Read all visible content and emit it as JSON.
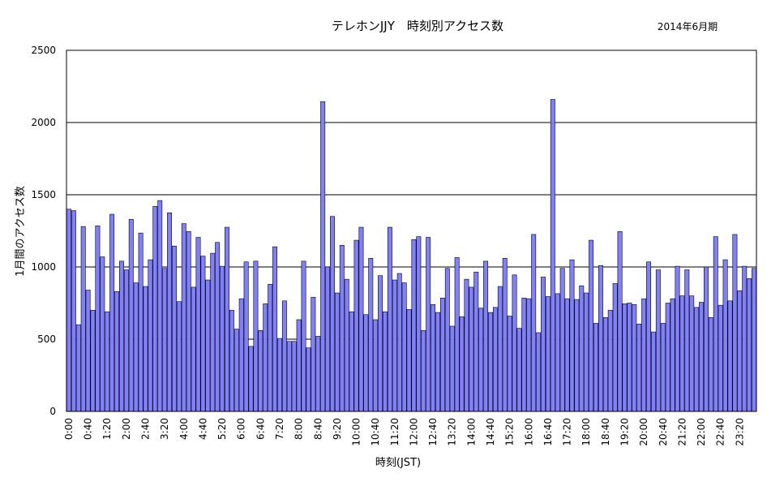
{
  "chart_data": {
    "type": "bar",
    "title": "テレホンJJY　時刻別アクセス数",
    "subtitle": "2014年6月期",
    "xlabel": "時刻(JST)",
    "ylabel": "1月間のアクセス数",
    "ylim": [
      0,
      2500
    ],
    "yticks": [
      0,
      500,
      1000,
      1500,
      2000,
      2500
    ],
    "grid": true,
    "colors": {
      "bar": "#8080ff",
      "grid": "#000000"
    },
    "x_tick_labels": [
      "0:00",
      "0:40",
      "1:20",
      "2:00",
      "2:40",
      "3:20",
      "4:00",
      "4:40",
      "5:20",
      "6:00",
      "6:40",
      "7:20",
      "8:00",
      "8:40",
      "9:20",
      "10:00",
      "10:40",
      "11:20",
      "12:00",
      "12:40",
      "13:20",
      "14:00",
      "14:40",
      "15:20",
      "16:00",
      "16:40",
      "17:20",
      "18:00",
      "18:40",
      "19:20",
      "20:00",
      "20:40",
      "21:20",
      "22:00",
      "22:40",
      "23:20"
    ],
    "interval_minutes": 10,
    "values": [
      1400,
      1390,
      600,
      1280,
      840,
      700,
      1285,
      1070,
      690,
      1365,
      830,
      1040,
      980,
      1330,
      890,
      1235,
      865,
      1050,
      1420,
      1460,
      990,
      1375,
      1145,
      760,
      1300,
      1245,
      860,
      1205,
      1075,
      910,
      1095,
      1170,
      1005,
      1275,
      700,
      570,
      780,
      1035,
      450,
      1040,
      560,
      745,
      880,
      1140,
      505,
      765,
      485,
      485,
      635,
      1040,
      440,
      790,
      520,
      2145,
      1000,
      1350,
      820,
      1150,
      915,
      690,
      1185,
      1275,
      670,
      1060,
      635,
      940,
      690,
      1275,
      910,
      955,
      890,
      705,
      1190,
      1210,
      560,
      1205,
      740,
      685,
      785,
      990,
      590,
      1065,
      655,
      915,
      860,
      965,
      715,
      1040,
      685,
      720,
      865,
      1060,
      660,
      945,
      575,
      785,
      780,
      1225,
      545,
      930,
      795,
      2160,
      815,
      990,
      780,
      1050,
      775,
      870,
      820,
      1185,
      610,
      1010,
      650,
      700,
      885,
      1245,
      745,
      750,
      740,
      605,
      780,
      1035,
      550,
      980,
      610,
      750,
      780,
      1005,
      800,
      980,
      800,
      720,
      755,
      1000,
      650,
      1210,
      735,
      1050,
      765,
      1225,
      835,
      1005,
      920,
      990
    ]
  }
}
